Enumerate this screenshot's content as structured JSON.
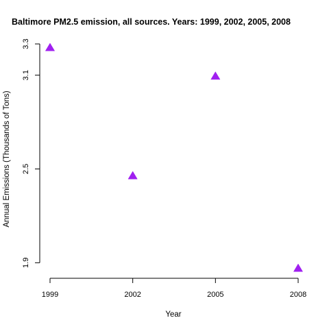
{
  "chart_data": {
    "type": "scatter",
    "title": "Baltimore PM2.5 emission, all sources. Years: 1999, 2002, 2005, 2008",
    "xlabel": "Year",
    "ylabel": "Annual Emissions (Thousands of Tons)",
    "x": [
      1999,
      2002,
      2005,
      2008
    ],
    "series": [
      {
        "values": [
          3.274,
          2.454,
          3.091,
          1.862
        ]
      }
    ],
    "xticks": [
      "1999",
      "2002",
      "2005",
      "2008"
    ],
    "yticks": [
      "1.9",
      "2.5",
      "3.1",
      "3.3"
    ],
    "xlim": [
      1999,
      2008
    ],
    "ylim": [
      1.862,
      3.274
    ],
    "marker": "filled-triangle",
    "marker_color": "#a020f0",
    "grid": false,
    "legend": "none"
  }
}
